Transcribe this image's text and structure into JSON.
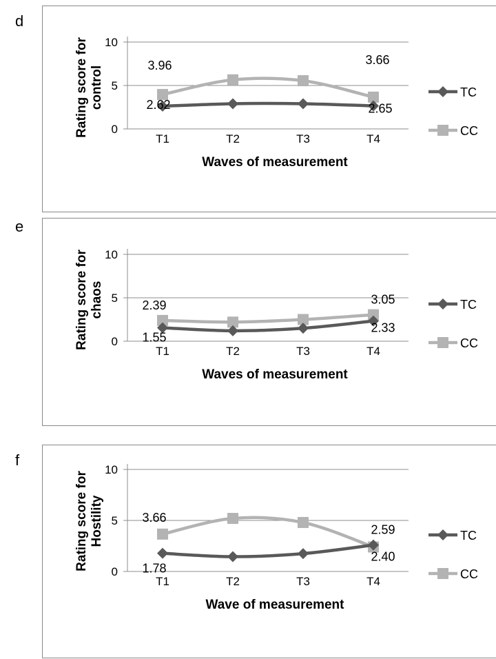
{
  "panels": [
    {
      "letter": "d",
      "chart_data": {
        "type": "line",
        "categories": [
          "T1",
          "T2",
          "T3",
          "T4"
        ],
        "series": [
          {
            "name": "TC",
            "values": [
              2.62,
              2.9,
              2.9,
              2.65
            ],
            "color": "#595959",
            "marker": "diamond"
          },
          {
            "name": "CC",
            "values": [
              3.96,
              5.65,
              5.55,
              3.66
            ],
            "color": "#b3b3b3",
            "marker": "square"
          }
        ],
        "data_labels": [
          {
            "text": "3.96",
            "series": 1,
            "point": 0
          },
          {
            "text": "3.66",
            "series": 1,
            "point": 3
          },
          {
            "text": "2.62",
            "series": 0,
            "point": 0
          },
          {
            "text": "2.65",
            "series": 0,
            "point": 3
          }
        ],
        "xlabel": "Waves of measurement",
        "ylabel_lines": [
          "Rating score for",
          "control"
        ],
        "yticks": [
          0,
          5,
          10
        ],
        "ylim": [
          0,
          10
        ],
        "legend_position": "right"
      }
    },
    {
      "letter": "e",
      "chart_data": {
        "type": "line",
        "categories": [
          "T1",
          "T2",
          "T3",
          "T4"
        ],
        "series": [
          {
            "name": "TC",
            "values": [
              1.55,
              1.2,
              1.5,
              2.33
            ],
            "color": "#595959",
            "marker": "diamond"
          },
          {
            "name": "CC",
            "values": [
              2.39,
              2.2,
              2.5,
              3.05
            ],
            "color": "#b3b3b3",
            "marker": "square"
          }
        ],
        "data_labels": [
          {
            "text": "2.39",
            "series": 1,
            "point": 0
          },
          {
            "text": "3.05",
            "series": 1,
            "point": 3
          },
          {
            "text": "1.55",
            "series": 0,
            "point": 0
          },
          {
            "text": "2.33",
            "series": 0,
            "point": 3
          }
        ],
        "xlabel": "Waves of measurement",
        "ylabel_lines": [
          "Rating score for",
          "chaos"
        ],
        "yticks": [
          0,
          5,
          10
        ],
        "ylim": [
          0,
          10
        ],
        "legend_position": "right"
      }
    },
    {
      "letter": "f",
      "chart_data": {
        "type": "line",
        "categories": [
          "T1",
          "T2",
          "T3",
          "T4"
        ],
        "series": [
          {
            "name": "TC",
            "values": [
              1.78,
              1.45,
              1.75,
              2.59
            ],
            "color": "#595959",
            "marker": "diamond"
          },
          {
            "name": "CC",
            "values": [
              3.66,
              5.2,
              4.8,
              2.4
            ],
            "color": "#b3b3b3",
            "marker": "square"
          }
        ],
        "data_labels": [
          {
            "text": "3.66",
            "series": 1,
            "point": 0
          },
          {
            "text": "2.59",
            "series": 0,
            "point": 3
          },
          {
            "text": "1.78",
            "series": 0,
            "point": 0
          },
          {
            "text": "2.40",
            "series": 1,
            "point": 3
          }
        ],
        "xlabel": "Wave of measurement",
        "ylabel_lines": [
          "Rating score for",
          "Hostility"
        ],
        "yticks": [
          0,
          5,
          10
        ],
        "ylim": [
          0,
          10
        ],
        "legend_position": "right"
      }
    }
  ]
}
